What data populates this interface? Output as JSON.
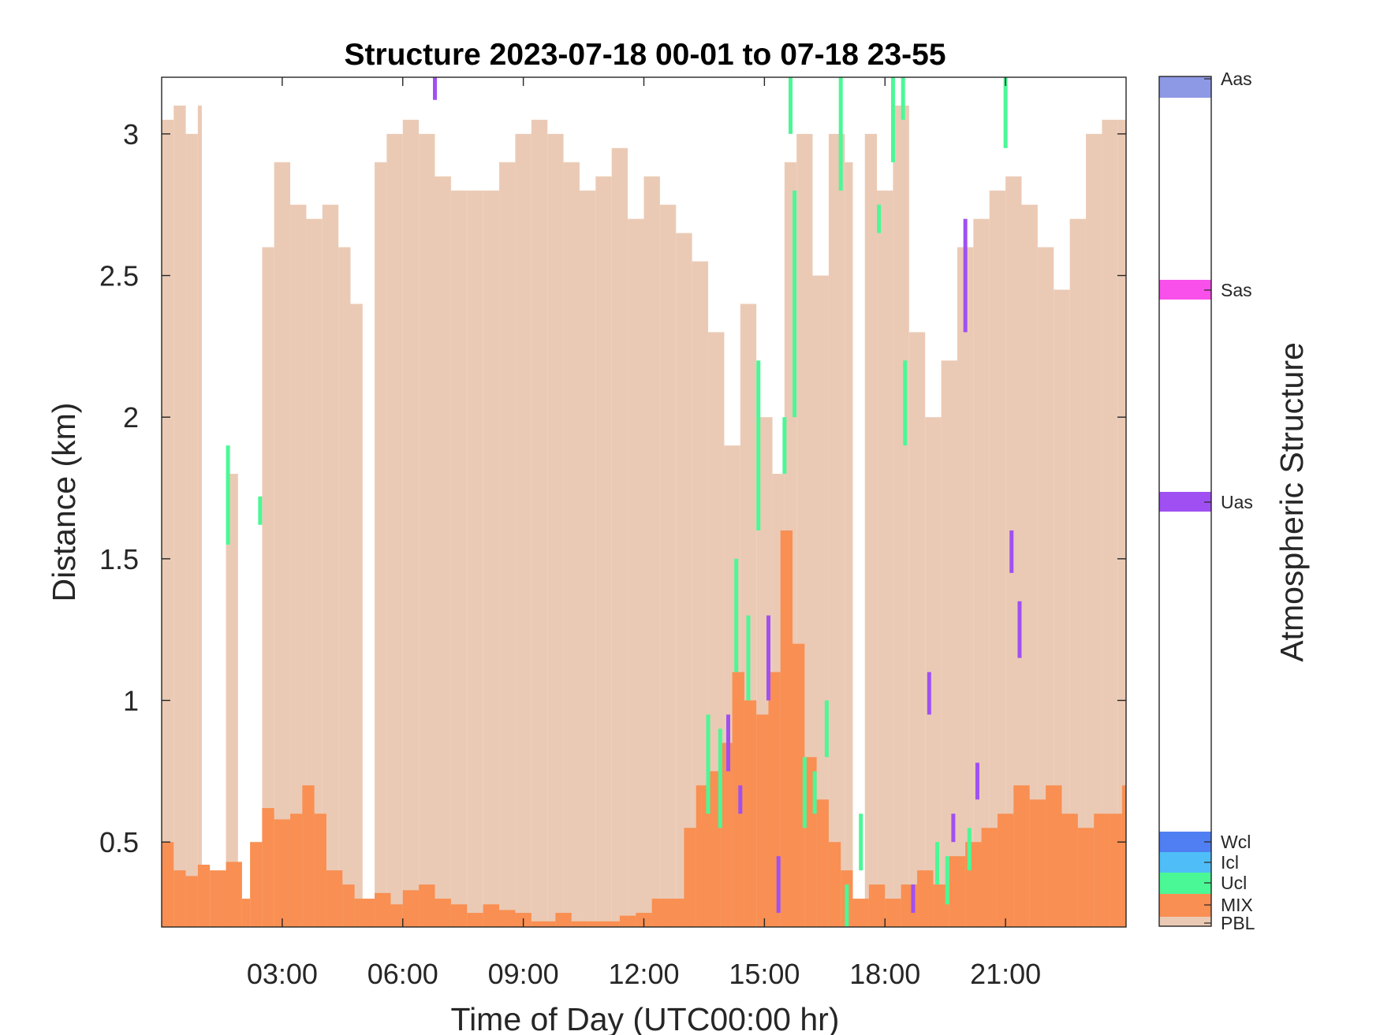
{
  "chart_data": {
    "type": "heatmap",
    "title": "Structure 2023-07-18 00-01 to 07-18 23-55",
    "xlabel": "Time of Day (UTC00:00 hr)",
    "ylabel": "Distance (km)",
    "colorbar_label": "Atmospheric Structure",
    "x_unit": "hour",
    "xlim": [
      0,
      24
    ],
    "ylim": [
      0.2,
      3.2
    ],
    "xticks": [
      {
        "value": 3,
        "label": "03:00"
      },
      {
        "value": 6,
        "label": "06:00"
      },
      {
        "value": 9,
        "label": "09:00"
      },
      {
        "value": 12,
        "label": "12:00"
      },
      {
        "value": 15,
        "label": "15:00"
      },
      {
        "value": 18,
        "label": "18:00"
      },
      {
        "value": 21,
        "label": "21:00"
      }
    ],
    "yticks": [
      {
        "value": 0.5,
        "label": "0.5"
      },
      {
        "value": 1,
        "label": "1"
      },
      {
        "value": 1.5,
        "label": "1.5"
      },
      {
        "value": 2,
        "label": "2"
      },
      {
        "value": 2.5,
        "label": "2.5"
      },
      {
        "value": 3,
        "label": "3"
      }
    ],
    "categories": [
      {
        "code": "PBL",
        "label": "PBL",
        "color": "#EBCAB5"
      },
      {
        "code": "MIX",
        "label": "MIX",
        "color": "#F98F52"
      },
      {
        "code": "Ucl",
        "label": "Ucl",
        "color": "#4BF896"
      },
      {
        "code": "Icl",
        "label": "Icl",
        "color": "#4FBEF8"
      },
      {
        "code": "Wcl",
        "label": "Wcl",
        "color": "#4F7FF2"
      },
      {
        "code": "Uas",
        "label": "Uas",
        "color": "#A050F2"
      },
      {
        "code": "Sas",
        "label": "Sas",
        "color": "#F94FEB"
      },
      {
        "code": "Aas",
        "label": "Aas",
        "color": "#8E99E6"
      }
    ],
    "pbl_top_km": [
      {
        "x": 0.0,
        "y": 3.05
      },
      {
        "x": 0.3,
        "y": 3.1
      },
      {
        "x": 0.6,
        "y": 3.0
      },
      {
        "x": 0.9,
        "y": 3.1
      },
      {
        "x": 1.0,
        "y": 0.0
      },
      {
        "x": 1.3,
        "y": 0.0
      },
      {
        "x": 1.6,
        "y": 1.8
      },
      {
        "x": 1.9,
        "y": 0.0
      },
      {
        "x": 2.2,
        "y": 0.0
      },
      {
        "x": 2.5,
        "y": 2.6
      },
      {
        "x": 2.8,
        "y": 2.9
      },
      {
        "x": 3.2,
        "y": 2.75
      },
      {
        "x": 3.6,
        "y": 2.7
      },
      {
        "x": 4.0,
        "y": 2.75
      },
      {
        "x": 4.4,
        "y": 2.6
      },
      {
        "x": 4.7,
        "y": 2.4
      },
      {
        "x": 5.0,
        "y": 0.0
      },
      {
        "x": 5.3,
        "y": 2.9
      },
      {
        "x": 5.6,
        "y": 3.0
      },
      {
        "x": 6.0,
        "y": 3.05
      },
      {
        "x": 6.4,
        "y": 3.0
      },
      {
        "x": 6.8,
        "y": 2.85
      },
      {
        "x": 7.2,
        "y": 2.8
      },
      {
        "x": 7.6,
        "y": 2.8
      },
      {
        "x": 8.0,
        "y": 2.8
      },
      {
        "x": 8.4,
        "y": 2.9
      },
      {
        "x": 8.8,
        "y": 3.0
      },
      {
        "x": 9.2,
        "y": 3.05
      },
      {
        "x": 9.6,
        "y": 3.0
      },
      {
        "x": 10.0,
        "y": 2.9
      },
      {
        "x": 10.4,
        "y": 2.8
      },
      {
        "x": 10.8,
        "y": 2.85
      },
      {
        "x": 11.2,
        "y": 2.95
      },
      {
        "x": 11.6,
        "y": 2.7
      },
      {
        "x": 12.0,
        "y": 2.85
      },
      {
        "x": 12.4,
        "y": 2.75
      },
      {
        "x": 12.8,
        "y": 2.65
      },
      {
        "x": 13.2,
        "y": 2.55
      },
      {
        "x": 13.6,
        "y": 2.3
      },
      {
        "x": 14.0,
        "y": 1.9
      },
      {
        "x": 14.4,
        "y": 2.4
      },
      {
        "x": 14.8,
        "y": 2.0
      },
      {
        "x": 15.2,
        "y": 1.8
      },
      {
        "x": 15.5,
        "y": 2.9
      },
      {
        "x": 15.8,
        "y": 3.0
      },
      {
        "x": 16.2,
        "y": 2.5
      },
      {
        "x": 16.6,
        "y": 3.0
      },
      {
        "x": 17.0,
        "y": 2.9
      },
      {
        "x": 17.2,
        "y": 0.0
      },
      {
        "x": 17.5,
        "y": 3.0
      },
      {
        "x": 17.8,
        "y": 2.8
      },
      {
        "x": 18.2,
        "y": 3.1
      },
      {
        "x": 18.6,
        "y": 2.3
      },
      {
        "x": 19.0,
        "y": 2.0
      },
      {
        "x": 19.4,
        "y": 2.2
      },
      {
        "x": 19.8,
        "y": 2.6
      },
      {
        "x": 20.2,
        "y": 2.7
      },
      {
        "x": 20.6,
        "y": 2.8
      },
      {
        "x": 21.0,
        "y": 2.85
      },
      {
        "x": 21.4,
        "y": 2.75
      },
      {
        "x": 21.8,
        "y": 2.6
      },
      {
        "x": 22.2,
        "y": 2.45
      },
      {
        "x": 22.6,
        "y": 2.7
      },
      {
        "x": 23.0,
        "y": 3.0
      },
      {
        "x": 23.4,
        "y": 3.05
      },
      {
        "x": 23.8,
        "y": 3.05
      }
    ],
    "mix_top_km": [
      {
        "x": 0.0,
        "y": 0.5
      },
      {
        "x": 0.3,
        "y": 0.4
      },
      {
        "x": 0.6,
        "y": 0.38
      },
      {
        "x": 0.9,
        "y": 0.42
      },
      {
        "x": 1.2,
        "y": 0.4
      },
      {
        "x": 1.6,
        "y": 0.43
      },
      {
        "x": 2.0,
        "y": 0.3
      },
      {
        "x": 2.2,
        "y": 0.5
      },
      {
        "x": 2.5,
        "y": 0.62
      },
      {
        "x": 2.8,
        "y": 0.58
      },
      {
        "x": 3.2,
        "y": 0.6
      },
      {
        "x": 3.5,
        "y": 0.7
      },
      {
        "x": 3.8,
        "y": 0.6
      },
      {
        "x": 4.1,
        "y": 0.4
      },
      {
        "x": 4.5,
        "y": 0.35
      },
      {
        "x": 4.8,
        "y": 0.3
      },
      {
        "x": 5.3,
        "y": 0.32
      },
      {
        "x": 5.7,
        "y": 0.28
      },
      {
        "x": 6.0,
        "y": 0.33
      },
      {
        "x": 6.4,
        "y": 0.35
      },
      {
        "x": 6.8,
        "y": 0.3
      },
      {
        "x": 7.2,
        "y": 0.28
      },
      {
        "x": 7.6,
        "y": 0.25
      },
      {
        "x": 8.0,
        "y": 0.28
      },
      {
        "x": 8.4,
        "y": 0.26
      },
      {
        "x": 8.8,
        "y": 0.25
      },
      {
        "x": 9.2,
        "y": 0.22
      },
      {
        "x": 9.8,
        "y": 0.25
      },
      {
        "x": 10.2,
        "y": 0.22
      },
      {
        "x": 10.6,
        "y": 0.22
      },
      {
        "x": 11.0,
        "y": 0.22
      },
      {
        "x": 11.4,
        "y": 0.24
      },
      {
        "x": 11.8,
        "y": 0.25
      },
      {
        "x": 12.2,
        "y": 0.3
      },
      {
        "x": 12.6,
        "y": 0.3
      },
      {
        "x": 13.0,
        "y": 0.55
      },
      {
        "x": 13.3,
        "y": 0.7
      },
      {
        "x": 13.6,
        "y": 0.75
      },
      {
        "x": 13.9,
        "y": 0.85
      },
      {
        "x": 14.2,
        "y": 1.1
      },
      {
        "x": 14.5,
        "y": 1.0
      },
      {
        "x": 14.8,
        "y": 0.95
      },
      {
        "x": 15.1,
        "y": 1.1
      },
      {
        "x": 15.4,
        "y": 1.6
      },
      {
        "x": 15.7,
        "y": 1.2
      },
      {
        "x": 16.0,
        "y": 0.8
      },
      {
        "x": 16.3,
        "y": 0.65
      },
      {
        "x": 16.6,
        "y": 0.5
      },
      {
        "x": 16.9,
        "y": 0.4
      },
      {
        "x": 17.2,
        "y": 0.3
      },
      {
        "x": 17.6,
        "y": 0.35
      },
      {
        "x": 18.0,
        "y": 0.3
      },
      {
        "x": 18.4,
        "y": 0.35
      },
      {
        "x": 18.8,
        "y": 0.4
      },
      {
        "x": 19.2,
        "y": 0.35
      },
      {
        "x": 19.6,
        "y": 0.45
      },
      {
        "x": 20.0,
        "y": 0.5
      },
      {
        "x": 20.4,
        "y": 0.55
      },
      {
        "x": 20.8,
        "y": 0.6
      },
      {
        "x": 21.2,
        "y": 0.7
      },
      {
        "x": 21.6,
        "y": 0.65
      },
      {
        "x": 22.0,
        "y": 0.7
      },
      {
        "x": 22.4,
        "y": 0.6
      },
      {
        "x": 22.8,
        "y": 0.55
      },
      {
        "x": 23.2,
        "y": 0.6
      },
      {
        "x": 23.6,
        "y": 0.6
      },
      {
        "x": 23.9,
        "y": 0.7
      }
    ],
    "cloud_segments": [
      {
        "class": "Ucl",
        "x": 1.65,
        "y0": 1.55,
        "y1": 1.9
      },
      {
        "class": "Ucl",
        "x": 2.45,
        "y0": 1.62,
        "y1": 1.72
      },
      {
        "class": "Uas",
        "x": 6.8,
        "y0": 3.12,
        "y1": 3.2
      },
      {
        "class": "Ucl",
        "x": 13.6,
        "y0": 0.6,
        "y1": 0.95
      },
      {
        "class": "Ucl",
        "x": 13.9,
        "y0": 0.55,
        "y1": 0.9
      },
      {
        "class": "Uas",
        "x": 14.1,
        "y0": 0.75,
        "y1": 0.95
      },
      {
        "class": "Ucl",
        "x": 14.3,
        "y0": 1.1,
        "y1": 1.5
      },
      {
        "class": "Uas",
        "x": 14.4,
        "y0": 0.6,
        "y1": 0.7
      },
      {
        "class": "Ucl",
        "x": 14.6,
        "y0": 1.0,
        "y1": 1.3
      },
      {
        "class": "Ucl",
        "x": 14.85,
        "y0": 1.6,
        "y1": 2.2
      },
      {
        "class": "Uas",
        "x": 15.1,
        "y0": 1.0,
        "y1": 1.3
      },
      {
        "class": "Uas",
        "x": 15.35,
        "y0": 0.25,
        "y1": 0.45
      },
      {
        "class": "Ucl",
        "x": 15.5,
        "y0": 1.8,
        "y1": 2.0
      },
      {
        "class": "Ucl",
        "x": 15.65,
        "y0": 3.0,
        "y1": 3.2
      },
      {
        "class": "Ucl",
        "x": 15.75,
        "y0": 2.0,
        "y1": 2.8
      },
      {
        "class": "Ucl",
        "x": 16.0,
        "y0": 0.55,
        "y1": 0.8
      },
      {
        "class": "Ucl",
        "x": 16.25,
        "y0": 0.6,
        "y1": 0.75
      },
      {
        "class": "Ucl",
        "x": 16.55,
        "y0": 0.8,
        "y1": 1.0
      },
      {
        "class": "Ucl",
        "x": 16.9,
        "y0": 2.8,
        "y1": 3.2
      },
      {
        "class": "Ucl",
        "x": 17.05,
        "y0": 0.2,
        "y1": 0.35
      },
      {
        "class": "Ucl",
        "x": 17.4,
        "y0": 0.4,
        "y1": 0.6
      },
      {
        "class": "Ucl",
        "x": 17.85,
        "y0": 2.65,
        "y1": 2.75
      },
      {
        "class": "Ucl",
        "x": 18.2,
        "y0": 2.9,
        "y1": 3.2
      },
      {
        "class": "Ucl",
        "x": 18.45,
        "y0": 3.05,
        "y1": 3.2
      },
      {
        "class": "Ucl",
        "x": 18.5,
        "y0": 1.9,
        "y1": 2.2
      },
      {
        "class": "Uas",
        "x": 18.7,
        "y0": 0.25,
        "y1": 0.35
      },
      {
        "class": "Uas",
        "x": 19.1,
        "y0": 0.95,
        "y1": 1.1
      },
      {
        "class": "Ucl",
        "x": 19.3,
        "y0": 0.35,
        "y1": 0.5
      },
      {
        "class": "Ucl",
        "x": 19.55,
        "y0": 0.28,
        "y1": 0.45
      },
      {
        "class": "Uas",
        "x": 19.7,
        "y0": 0.5,
        "y1": 0.6
      },
      {
        "class": "Uas",
        "x": 20.0,
        "y0": 2.3,
        "y1": 2.7
      },
      {
        "class": "Ucl",
        "x": 20.1,
        "y0": 0.4,
        "y1": 0.55
      },
      {
        "class": "Uas",
        "x": 20.3,
        "y0": 0.65,
        "y1": 0.78
      },
      {
        "class": "Ucl",
        "x": 21.0,
        "y0": 2.95,
        "y1": 3.2
      },
      {
        "class": "Uas",
        "x": 21.15,
        "y0": 1.45,
        "y1": 1.6
      },
      {
        "class": "Uas",
        "x": 21.35,
        "y0": 1.15,
        "y1": 1.35
      }
    ]
  }
}
